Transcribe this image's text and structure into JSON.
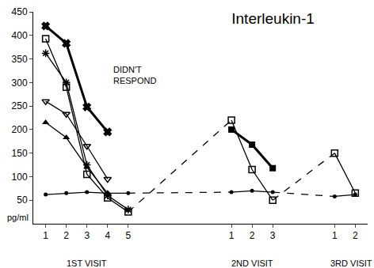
{
  "chart_data": {
    "type": "line",
    "title": "Interleukin-1",
    "y_label": "pg/ml",
    "categories": [
      "1",
      "2",
      "3",
      "4",
      "5",
      null,
      null,
      null,
      null,
      "1",
      "2",
      "3",
      null,
      null,
      "1",
      "2"
    ],
    "series": [
      {
        "color": "#000000",
        "marker": "x",
        "line_style": "bold",
        "values": [
          420,
          383,
          248,
          195,
          null,
          null,
          null,
          null,
          null,
          null,
          null,
          null,
          null,
          null,
          null,
          null
        ]
      },
      {
        "color": "#000000",
        "marker": "square-open",
        "line_style": "solid",
        "values": [
          393,
          290,
          105,
          55,
          25,
          null,
          null,
          null,
          null,
          220,
          115,
          50,
          null,
          null,
          150,
          65
        ]
      },
      {
        "color": "#000000",
        "marker": "asterisk",
        "line_style": "solid",
        "values": [
          362,
          300,
          125,
          60,
          30,
          null,
          null,
          null,
          null,
          null,
          null,
          null,
          null,
          null,
          null,
          null
        ]
      },
      {
        "color": "#000000",
        "marker": "triangle-down-open",
        "line_style": "solid",
        "values": [
          260,
          233,
          165,
          95,
          null,
          null,
          null,
          null,
          null,
          null,
          null,
          null,
          null,
          null,
          null,
          null
        ]
      },
      {
        "color": "#000000",
        "marker": "triangle-up",
        "line_style": "solid",
        "values": [
          215,
          183,
          120,
          65,
          null,
          null,
          null,
          null,
          null,
          null,
          null,
          null,
          null,
          null,
          null,
          null
        ]
      },
      {
        "color": "#000000",
        "marker": "square",
        "line_style": "bold",
        "values": [
          null,
          null,
          null,
          null,
          null,
          null,
          null,
          null,
          null,
          200,
          168,
          118,
          null,
          null,
          null,
          null
        ]
      },
      {
        "color": "#000000",
        "marker": "circle",
        "line_style": "solid",
        "values": [
          62,
          65,
          67,
          65,
          65,
          null,
          null,
          null,
          null,
          67,
          70,
          67,
          null,
          null,
          58,
          62
        ]
      }
    ],
    "annotations": [
      {
        "text": "DIDN'T\nRESPOND",
        "x": 3.2,
        "y": 315
      },
      {
        "text": "1ST VISIT",
        "x": 2
      },
      {
        "text": "2ND VISIT",
        "x": 10
      },
      {
        "text": "3RD VISIT",
        "x": 14.8
      }
    ],
    "ylim": [
      0,
      450
    ],
    "yticks": [
      50,
      100,
      150,
      200,
      250,
      300,
      350,
      400,
      450
    ],
    "grid": false
  }
}
